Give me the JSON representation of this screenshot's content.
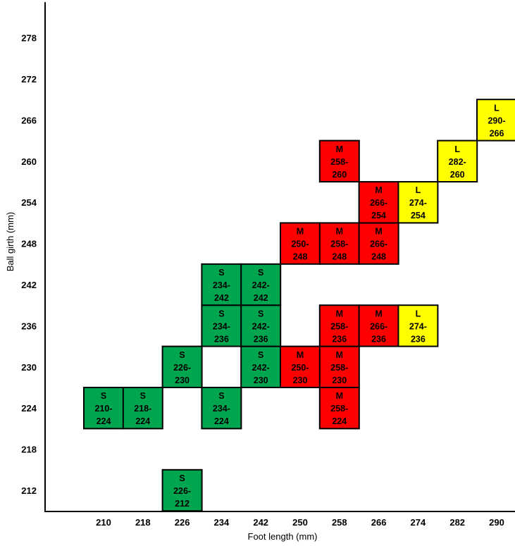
{
  "chart_data": {
    "type": "heatmap",
    "xlabel": "Foot length (mm)",
    "ylabel": "Ball girth (mm)",
    "x_ticks": [
      210,
      218,
      226,
      234,
      242,
      250,
      258,
      266,
      274,
      282,
      290
    ],
    "y_ticks": [
      212,
      218,
      224,
      230,
      236,
      242,
      248,
      254,
      260,
      266,
      272,
      278
    ],
    "grid": false,
    "colors": {
      "S": "#00a64f",
      "M": "#ff0000",
      "L": "#ffff00"
    },
    "cells": [
      {
        "size": "S",
        "x": 226,
        "y": 212,
        "line1": "226-",
        "line2": "212"
      },
      {
        "size": "S",
        "x": 210,
        "y": 224,
        "line1": "210-",
        "line2": "224"
      },
      {
        "size": "S",
        "x": 218,
        "y": 224,
        "line1": "218-",
        "line2": "224"
      },
      {
        "size": "S",
        "x": 234,
        "y": 224,
        "line1": "234-",
        "line2": "224"
      },
      {
        "size": "M",
        "x": 258,
        "y": 224,
        "line1": "258-",
        "line2": "224"
      },
      {
        "size": "S",
        "x": 226,
        "y": 230,
        "line1": "226-",
        "line2": "230"
      },
      {
        "size": "S",
        "x": 242,
        "y": 230,
        "line1": "242-",
        "line2": "230"
      },
      {
        "size": "M",
        "x": 250,
        "y": 230,
        "line1": "250-",
        "line2": "230"
      },
      {
        "size": "M",
        "x": 258,
        "y": 230,
        "line1": "258-",
        "line2": "230"
      },
      {
        "size": "S",
        "x": 234,
        "y": 236,
        "line1": "234-",
        "line2": "236"
      },
      {
        "size": "S",
        "x": 242,
        "y": 236,
        "line1": "242-",
        "line2": "236"
      },
      {
        "size": "M",
        "x": 258,
        "y": 236,
        "line1": "258-",
        "line2": "236"
      },
      {
        "size": "M",
        "x": 266,
        "y": 236,
        "line1": "266-",
        "line2": "236"
      },
      {
        "size": "L",
        "x": 274,
        "y": 236,
        "line1": "274-",
        "line2": "236"
      },
      {
        "size": "S",
        "x": 234,
        "y": 242,
        "line1": "234-",
        "line2": "242"
      },
      {
        "size": "S",
        "x": 242,
        "y": 242,
        "line1": "242-",
        "line2": "242"
      },
      {
        "size": "M",
        "x": 250,
        "y": 248,
        "line1": "250-",
        "line2": "248"
      },
      {
        "size": "M",
        "x": 258,
        "y": 248,
        "line1": "258-",
        "line2": "248"
      },
      {
        "size": "M",
        "x": 266,
        "y": 248,
        "line1": "266-",
        "line2": "248"
      },
      {
        "size": "M",
        "x": 266,
        "y": 254,
        "line1": "266-",
        "line2": "254"
      },
      {
        "size": "L",
        "x": 274,
        "y": 254,
        "line1": "274-",
        "line2": "254"
      },
      {
        "size": "M",
        "x": 258,
        "y": 260,
        "line1": "258-",
        "line2": "260"
      },
      {
        "size": "L",
        "x": 282,
        "y": 260,
        "line1": "282-",
        "line2": "260"
      },
      {
        "size": "L",
        "x": 290,
        "y": 266,
        "line1": "290-",
        "line2": "266"
      }
    ]
  }
}
